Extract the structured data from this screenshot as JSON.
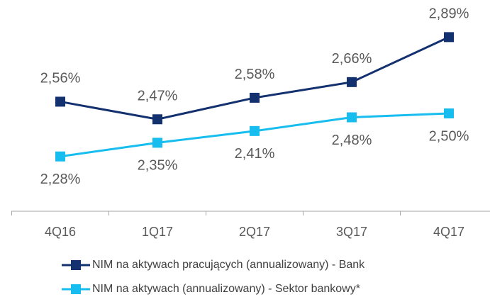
{
  "chart_data": {
    "type": "line",
    "categories": [
      "4Q16",
      "1Q17",
      "2Q17",
      "3Q17",
      "4Q17"
    ],
    "series": [
      {
        "name": "NIM na aktywach pracujących (annualizowany) - Bank",
        "color": "#13306f",
        "values": [
          2.56,
          2.47,
          2.58,
          2.66,
          2.89
        ],
        "value_labels": [
          "2,56%",
          "2,47%",
          "2,58%",
          "2,66%",
          "2,89%"
        ]
      },
      {
        "name": "NIM na aktywach  (annualizowany) - Sektor bankowy*",
        "color": "#16bdee",
        "values": [
          2.28,
          2.35,
          2.41,
          2.48,
          2.5
        ],
        "value_labels": [
          "2,28%",
          "2,35%",
          "2,41%",
          "2,48%",
          "2,50%"
        ]
      }
    ],
    "ylim": [
      2.0,
      3.0
    ]
  }
}
